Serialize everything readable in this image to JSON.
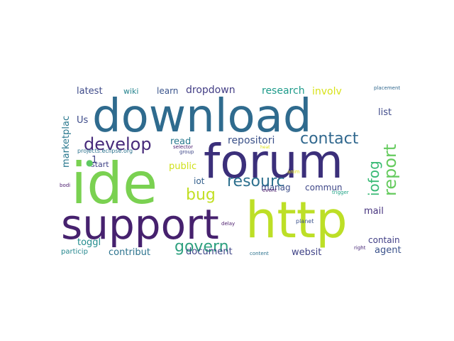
{
  "words": [
    {
      "text": "download",
      "color": "#2f6b8e"
    },
    {
      "text": "ide",
      "color": "#7ad151"
    },
    {
      "text": "forum",
      "color": "#3b2f7a"
    },
    {
      "text": "http",
      "color": "#bddf26"
    },
    {
      "text": "support",
      "color": "#46216e"
    },
    {
      "text": "develop",
      "color": "#472a7a"
    },
    {
      "text": "contact",
      "color": "#31688e"
    },
    {
      "text": "report",
      "color": "#65cb5e"
    },
    {
      "text": "resourc",
      "color": "#2d708e"
    },
    {
      "text": "govern",
      "color": "#2ea07f"
    },
    {
      "text": "bug",
      "color": "#c2df23"
    },
    {
      "text": "iofog",
      "color": "#3aba76"
    },
    {
      "text": "repositori",
      "color": "#3b5189"
    },
    {
      "text": "dropdown",
      "color": "#433e85"
    },
    {
      "text": "research",
      "color": "#1e9b8a"
    },
    {
      "text": "involv",
      "color": "#d8e219"
    },
    {
      "text": "latest",
      "color": "#3e4a89"
    },
    {
      "text": "wiki",
      "color": "#25848e"
    },
    {
      "text": "learn",
      "color": "#3a548c"
    },
    {
      "text": "list",
      "color": "#3e4989"
    },
    {
      "text": "marketplac",
      "color": "#2a788e"
    },
    {
      "text": "Us",
      "color": "#3e4c8a"
    },
    {
      "text": "read",
      "color": "#29798e"
    },
    {
      "text": "public",
      "color": "#d0e11c"
    },
    {
      "text": "iot",
      "color": "#34608d"
    },
    {
      "text": "manag",
      "color": "#3d4e8a"
    },
    {
      "text": "commun",
      "color": "#3f4788"
    },
    {
      "text": "mail",
      "color": "#46337e"
    },
    {
      "text": "contain",
      "color": "#424086"
    },
    {
      "text": "agent",
      "color": "#3b528b"
    },
    {
      "text": "websit",
      "color": "#404387"
    },
    {
      "text": "document",
      "color": "#3f4688"
    },
    {
      "text": "contribut",
      "color": "#2c738e"
    },
    {
      "text": "toggl",
      "color": "#228c8d"
    },
    {
      "text": "particip",
      "color": "#24878e"
    },
    {
      "text": "start",
      "color": "#414487"
    },
    {
      "text": "1",
      "color": "#414487"
    },
    {
      "text": "projects.eclipse.org",
      "color": "#2c728e"
    },
    {
      "text": "selector",
      "color": "#481b6d"
    },
    {
      "text": "group",
      "color": "#3f4889"
    },
    {
      "text": "placement",
      "color": "#31688e"
    },
    {
      "text": "bodi",
      "color": "#48196b"
    },
    {
      "text": "event",
      "color": "#471164"
    },
    {
      "text": "trigger",
      "color": "#20a386"
    },
    {
      "text": "anim",
      "color": "#e5e419"
    },
    {
      "text": "planet",
      "color": "#3b528b"
    },
    {
      "text": "delay",
      "color": "#48186a"
    },
    {
      "text": "right",
      "color": "#482878"
    },
    {
      "text": "content",
      "color": "#2c728e"
    },
    {
      "text": "heat",
      "color": "#dde318"
    },
    {
      "text": "●",
      "color": "#5ec962"
    }
  ]
}
